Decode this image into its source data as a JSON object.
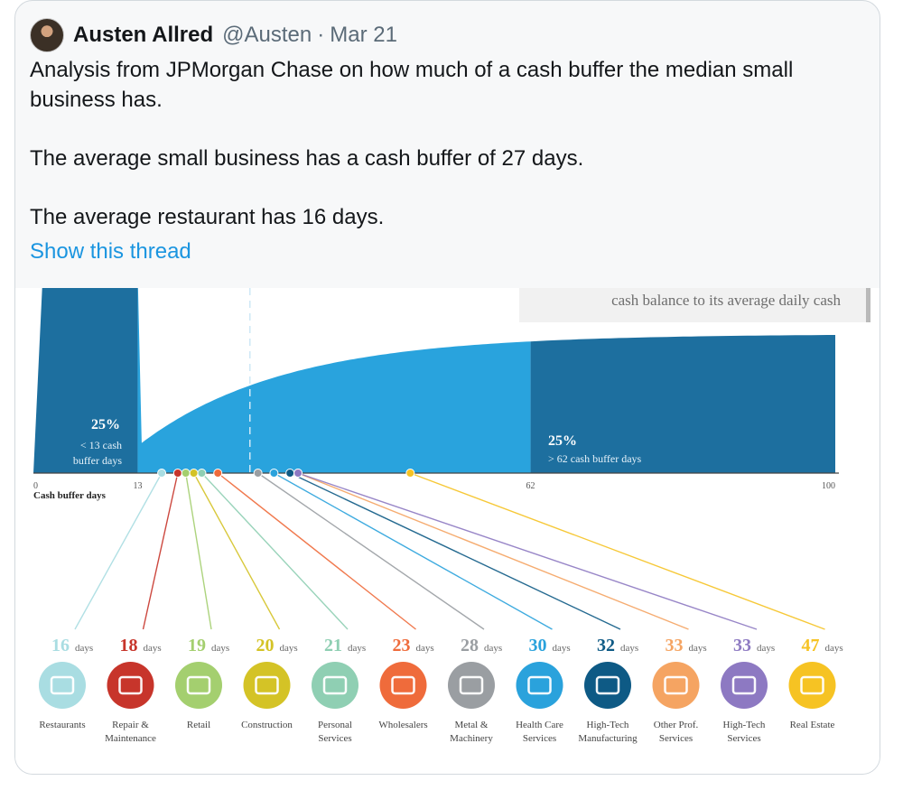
{
  "tweet": {
    "author_name": "Austen Allred",
    "handle": "@Austen",
    "separator": "·",
    "date": "Mar 21",
    "paragraphs": [
      "Analysis from JPMorgan Chase on how much of a cash buffer the median small business has.",
      "The average small business has a cash buffer of 27 days.",
      "The average restaurant has 16 days."
    ],
    "thread_link": "Show this thread"
  },
  "chart_data": {
    "type": "area",
    "note_text": "cash balance to its average daily cash",
    "xlabel": "Cash buffer days",
    "x_ticks": [
      0,
      13,
      62,
      100
    ],
    "x_tick_labels": [
      "0",
      "13",
      "62",
      "100"
    ],
    "quartile_low": {
      "pct": "25%",
      "desc_line1": "< 13 cash",
      "desc_line2": "buffer days"
    },
    "quartile_high": {
      "pct": "25%",
      "desc": "> 62 cash buffer days"
    },
    "unit": "days",
    "industries": [
      {
        "name_line1": "Restaurants",
        "name_line2": "",
        "days": 16,
        "color": "#a9dde2",
        "icon": "plate-icon"
      },
      {
        "name_line1": "Repair &",
        "name_line2": "Maintenance",
        "days": 18,
        "color": "#c7352b",
        "icon": "toolbox-icon"
      },
      {
        "name_line1": "Retail",
        "name_line2": "",
        "days": 19,
        "color": "#a4cf6f",
        "icon": "shopping-bag-icon"
      },
      {
        "name_line1": "Construction",
        "name_line2": "",
        "days": 20,
        "color": "#d4c326",
        "icon": "hard-hat-icon"
      },
      {
        "name_line1": "Personal",
        "name_line2": "Services",
        "days": 21,
        "color": "#8fcfb3",
        "icon": "hanger-icon"
      },
      {
        "name_line1": "Wholesalers",
        "name_line2": "",
        "days": 23,
        "color": "#ef6b3b",
        "icon": "boxes-icon"
      },
      {
        "name_line1": "Metal &",
        "name_line2": "Machinery",
        "days": 28,
        "color": "#9a9ea2",
        "icon": "gears-icon"
      },
      {
        "name_line1": "Health Care",
        "name_line2": "Services",
        "days": 30,
        "color": "#2aa2dc",
        "icon": "caduceus-icon"
      },
      {
        "name_line1": "High-Tech",
        "name_line2": "Manufacturing",
        "days": 32,
        "color": "#0e5a85",
        "icon": "chip-icon"
      },
      {
        "name_line1": "Other Prof.",
        "name_line2": "Services",
        "days": 33,
        "color": "#f5a462",
        "icon": "briefcase-icon"
      },
      {
        "name_line1": "High-Tech",
        "name_line2": "Services",
        "days": 33,
        "color": "#8d79c2",
        "icon": "monitor-icon"
      },
      {
        "name_line1": "Real Estate",
        "name_line2": "",
        "days": 47,
        "color": "#f6c323",
        "icon": "for-sale-sign-icon"
      }
    ]
  }
}
